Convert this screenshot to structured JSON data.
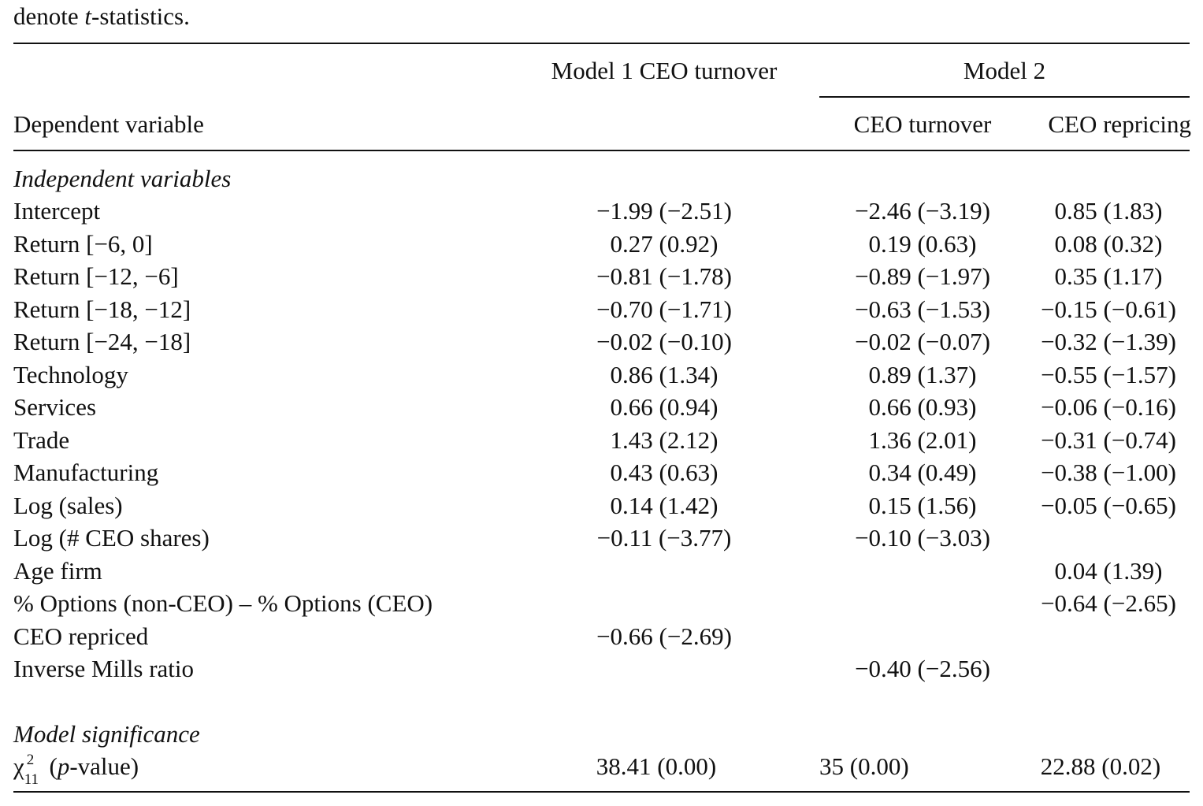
{
  "caption_fragment": {
    "pre": "denote ",
    "ital": "t",
    "post": "-statistics."
  },
  "header": {
    "model1_label": "Model 1 CEO turnover",
    "model2_label": "Model 2",
    "dep_var_label": "Dependent variable",
    "model2_col1": "CEO turnover",
    "model2_col2": "CEO repricing"
  },
  "sections": {
    "independent": "Independent variables",
    "significance": "Model significance"
  },
  "rows": [
    {
      "label": "Intercept",
      "m1": "−1.99 (−2.51)",
      "m2a": "−2.46 (−3.19)",
      "m2b": "0.85 (1.83)"
    },
    {
      "label": "Return [−6, 0]",
      "m1": "0.27 (0.92)",
      "m2a": "0.19 (0.63)",
      "m2b": "0.08 (0.32)"
    },
    {
      "label": "Return [−12, −6]",
      "m1": "−0.81 (−1.78)",
      "m2a": "−0.89 (−1.97)",
      "m2b": "0.35 (1.17)"
    },
    {
      "label": "Return [−18, −12]",
      "m1": "−0.70 (−1.71)",
      "m2a": "−0.63 (−1.53)",
      "m2b": "−0.15 (−0.61)"
    },
    {
      "label": "Return [−24, −18]",
      "m1": "−0.02 (−0.10)",
      "m2a": "−0.02 (−0.07)",
      "m2b": "−0.32 (−1.39)"
    },
    {
      "label": "Technology",
      "m1": "0.86 (1.34)",
      "m2a": "0.89 (1.37)",
      "m2b": "−0.55 (−1.57)"
    },
    {
      "label": "Services",
      "m1": "0.66 (0.94)",
      "m2a": "0.66 (0.93)",
      "m2b": "−0.06 (−0.16)"
    },
    {
      "label": "Trade",
      "m1": "1.43 (2.12)",
      "m2a": "1.36 (2.01)",
      "m2b": "−0.31 (−0.74)"
    },
    {
      "label": "Manufacturing",
      "m1": "0.43 (0.63)",
      "m2a": "0.34 (0.49)",
      "m2b": "−0.38 (−1.00)"
    },
    {
      "label": "Log (sales)",
      "m1": "0.14 (1.42)",
      "m2a": "0.15 (1.56)",
      "m2b": "−0.05 (−0.65)"
    },
    {
      "label": "Log (# CEO shares)",
      "m1": "−0.11 (−3.77)",
      "m2a": "−0.10 (−3.03)",
      "m2b": ""
    },
    {
      "label": "Age firm",
      "m1": "",
      "m2a": "",
      "m2b": "0.04 (1.39)"
    },
    {
      "label": "% Options (non-CEO) – % Options (CEO)",
      "m1": "",
      "m2a": "",
      "m2b": "−0.64 (−2.65)"
    },
    {
      "label": "CEO repriced",
      "m1": "−0.66 (−2.69)",
      "m2a": "",
      "m2b": ""
    },
    {
      "label": "Inverse Mills ratio",
      "m1": "",
      "m2a": "−0.40 (−2.56)",
      "m2b": ""
    }
  ],
  "chi_row": {
    "chi": "χ",
    "sup": "2",
    "sub": "11",
    "pre": " (",
    "ital": "p",
    "post": "-value)",
    "m1": "38.41 (0.00)",
    "m2a": "35 (0.00)",
    "m2b": "22.88 (0.02)"
  }
}
